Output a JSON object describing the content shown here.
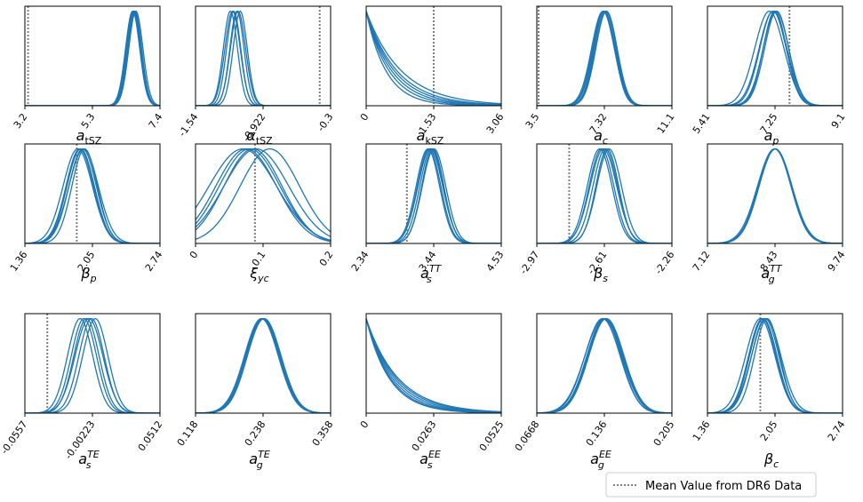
{
  "chart_data": {
    "type": "line",
    "title": "",
    "grid": false,
    "series_color": "#1f77b4",
    "marker_color": "#808080",
    "legend": {
      "placement": "bottom-right",
      "entries": [
        {
          "label": "Mean Value from DR6 Data",
          "style": "dotted",
          "color": "#808080"
        }
      ]
    },
    "panels": [
      {
        "label": "a_tSZ",
        "xticks": [
          "3.2",
          "5.3",
          "7.4"
        ],
        "xlim": [
          3.2,
          7.4
        ],
        "dr6_mean": 3.3,
        "curves": [
          {
            "mu": 6.55,
            "sigma": 0.22
          },
          {
            "mu": 6.6,
            "sigma": 0.22
          },
          {
            "mu": 6.62,
            "sigma": 0.21
          },
          {
            "mu": 6.57,
            "sigma": 0.22
          },
          {
            "mu": 6.6,
            "sigma": 0.21
          },
          {
            "mu": 6.65,
            "sigma": 0.22
          }
        ]
      },
      {
        "label": "α_tSZ",
        "xticks": [
          "-1.54",
          "-0.922",
          "-0.3"
        ],
        "xlim": [
          -1.54,
          -0.3
        ],
        "dr6_mean": -0.4,
        "curves": [
          {
            "mu": -1.22,
            "sigma": 0.065
          },
          {
            "mu": -1.19,
            "sigma": 0.065
          },
          {
            "mu": -1.16,
            "sigma": 0.065
          },
          {
            "mu": -1.13,
            "sigma": 0.065
          },
          {
            "mu": -1.2,
            "sigma": 0.07
          },
          {
            "mu": -1.15,
            "sigma": 0.07
          }
        ]
      },
      {
        "label": "a_kSZ",
        "xticks": [
          "0",
          "1.53",
          "3.06"
        ],
        "xlim": [
          0,
          3.06
        ],
        "dr6_mean": 1.53,
        "shape": "exponential",
        "curves": [
          {
            "scale": 0.45
          },
          {
            "scale": 0.52
          },
          {
            "scale": 0.58
          },
          {
            "scale": 0.64
          },
          {
            "scale": 0.7
          },
          {
            "scale": 0.8
          }
        ]
      },
      {
        "label": "a_c",
        "xticks": [
          "3.5",
          "7.32",
          "11.1"
        ],
        "xlim": [
          3.5,
          11.1
        ],
        "dr6_mean": 3.6,
        "curves": [
          {
            "mu": 7.3,
            "sigma": 0.62
          },
          {
            "mu": 7.38,
            "sigma": 0.6
          },
          {
            "mu": 7.22,
            "sigma": 0.64
          },
          {
            "mu": 7.42,
            "sigma": 0.6
          },
          {
            "mu": 7.3,
            "sigma": 0.58
          },
          {
            "mu": 7.25,
            "sigma": 0.62
          }
        ]
      },
      {
        "label": "a_p",
        "xticks": [
          "5.41",
          "7.25",
          "9.1"
        ],
        "xlim": [
          5.41,
          9.1
        ],
        "dr6_mean": 7.65,
        "curves": [
          {
            "mu": 7.2,
            "sigma": 0.36
          },
          {
            "mu": 7.28,
            "sigma": 0.35
          },
          {
            "mu": 7.2,
            "sigma": 0.38
          },
          {
            "mu": 7.3,
            "sigma": 0.33
          },
          {
            "mu": 7.1,
            "sigma": 0.4
          },
          {
            "mu": 7.25,
            "sigma": 0.32
          }
        ]
      },
      {
        "label": "β_p",
        "xticks": [
          "1.36",
          "2.05",
          "2.74"
        ],
        "xlim": [
          1.36,
          2.74
        ],
        "dr6_mean": 1.89,
        "curves": [
          {
            "mu": 1.93,
            "sigma": 0.14
          },
          {
            "mu": 1.95,
            "sigma": 0.14
          },
          {
            "mu": 1.9,
            "sigma": 0.15
          },
          {
            "mu": 1.97,
            "sigma": 0.13
          },
          {
            "mu": 1.92,
            "sigma": 0.14
          },
          {
            "mu": 1.96,
            "sigma": 0.15
          }
        ]
      },
      {
        "label": "ξ_yc",
        "xticks": [
          "0",
          "0.1",
          "0.2"
        ],
        "xlim": [
          0,
          0.2
        ],
        "dr6_mean": 0.088,
        "curves": [
          {
            "mu": 0.075,
            "sigma": 0.045
          },
          {
            "mu": 0.08,
            "sigma": 0.045
          },
          {
            "mu": 0.07,
            "sigma": 0.05
          },
          {
            "mu": 0.085,
            "sigma": 0.043
          },
          {
            "mu": 0.09,
            "sigma": 0.048
          },
          {
            "mu": 0.11,
            "sigma": 0.044
          }
        ]
      },
      {
        "label": "a_s^TT",
        "xticks": [
          "2.34",
          "3.44",
          "4.53"
        ],
        "xlim": [
          2.34,
          4.53
        ],
        "dr6_mean": 3.0,
        "curves": [
          {
            "mu": 3.36,
            "sigma": 0.19
          },
          {
            "mu": 3.4,
            "sigma": 0.19
          },
          {
            "mu": 3.44,
            "sigma": 0.19
          },
          {
            "mu": 3.38,
            "sigma": 0.2
          },
          {
            "mu": 3.42,
            "sigma": 0.18
          },
          {
            "mu": 3.34,
            "sigma": 0.19
          }
        ]
      },
      {
        "label": "β_s",
        "xticks": [
          "-2.97",
          "-2.61",
          "-2.26"
        ],
        "xlim": [
          -2.97,
          -2.26
        ],
        "dr6_mean": -2.8,
        "curves": [
          {
            "mu": -2.63,
            "sigma": 0.065
          },
          {
            "mu": -2.61,
            "sigma": 0.065
          },
          {
            "mu": -2.6,
            "sigma": 0.06
          },
          {
            "mu": -2.62,
            "sigma": 0.07
          },
          {
            "mu": -2.59,
            "sigma": 0.065
          },
          {
            "mu": -2.64,
            "sigma": 0.065
          }
        ]
      },
      {
        "label": "a_g^TT",
        "xticks": [
          "7.12",
          "8.43",
          "9.74"
        ],
        "xlim": [
          7.12,
          9.74
        ],
        "dr6_mean": null,
        "curves": [
          {
            "mu": 8.43,
            "sigma": 0.32
          },
          {
            "mu": 8.43,
            "sigma": 0.31
          },
          {
            "mu": 8.44,
            "sigma": 0.32
          },
          {
            "mu": 8.42,
            "sigma": 0.33
          },
          {
            "mu": 8.43,
            "sigma": 0.32
          },
          {
            "mu": 8.43,
            "sigma": 0.31
          }
        ]
      },
      {
        "label": "a_s^TE",
        "xticks": [
          "-0.0557",
          "-0.00223",
          "0.0512"
        ],
        "xlim": [
          -0.0557,
          0.0512
        ],
        "dr6_mean": -0.038,
        "curves": [
          {
            "mu": -0.012,
            "sigma": 0.01
          },
          {
            "mu": -0.007,
            "sigma": 0.01
          },
          {
            "mu": -0.003,
            "sigma": 0.01
          },
          {
            "mu": 0.0,
            "sigma": 0.01
          },
          {
            "mu": -0.005,
            "sigma": 0.011
          },
          {
            "mu": -0.009,
            "sigma": 0.01
          }
        ]
      },
      {
        "label": "a_g^TE",
        "xticks": [
          "0.118",
          "0.238",
          "0.358"
        ],
        "xlim": [
          0.118,
          0.358
        ],
        "dr6_mean": null,
        "curves": [
          {
            "mu": 0.236,
            "sigma": 0.03
          },
          {
            "mu": 0.238,
            "sigma": 0.03
          },
          {
            "mu": 0.24,
            "sigma": 0.03
          },
          {
            "mu": 0.237,
            "sigma": 0.031
          },
          {
            "mu": 0.239,
            "sigma": 0.029
          },
          {
            "mu": 0.235,
            "sigma": 0.03
          }
        ]
      },
      {
        "label": "a_s^EE",
        "xticks": [
          "0",
          "0.0263",
          "0.0525"
        ],
        "xlim": [
          0,
          0.0525
        ],
        "dr6_mean": null,
        "shape": "exponential",
        "curves": [
          {
            "scale": 0.009
          },
          {
            "scale": 0.0095
          },
          {
            "scale": 0.0102
          },
          {
            "scale": 0.011
          },
          {
            "scale": 0.0118
          },
          {
            "scale": 0.0125
          }
        ]
      },
      {
        "label": "a_g^EE",
        "xticks": [
          "0.0668",
          "0.136",
          "0.205"
        ],
        "xlim": [
          0.0668,
          0.205
        ],
        "dr6_mean": null,
        "curves": [
          {
            "mu": 0.136,
            "sigma": 0.018
          },
          {
            "mu": 0.137,
            "sigma": 0.018
          },
          {
            "mu": 0.135,
            "sigma": 0.019
          },
          {
            "mu": 0.138,
            "sigma": 0.018
          },
          {
            "mu": 0.136,
            "sigma": 0.017
          },
          {
            "mu": 0.134,
            "sigma": 0.018
          }
        ]
      },
      {
        "label": "β_c",
        "xticks": [
          "1.36",
          "2.05",
          "2.74"
        ],
        "xlim": [
          1.36,
          2.74
        ],
        "dr6_mean": 1.9,
        "curves": [
          {
            "mu": 1.93,
            "sigma": 0.14
          },
          {
            "mu": 1.95,
            "sigma": 0.14
          },
          {
            "mu": 1.9,
            "sigma": 0.15
          },
          {
            "mu": 1.97,
            "sigma": 0.13
          },
          {
            "mu": 1.92,
            "sigma": 0.14
          },
          {
            "mu": 1.96,
            "sigma": 0.15
          }
        ]
      }
    ]
  }
}
